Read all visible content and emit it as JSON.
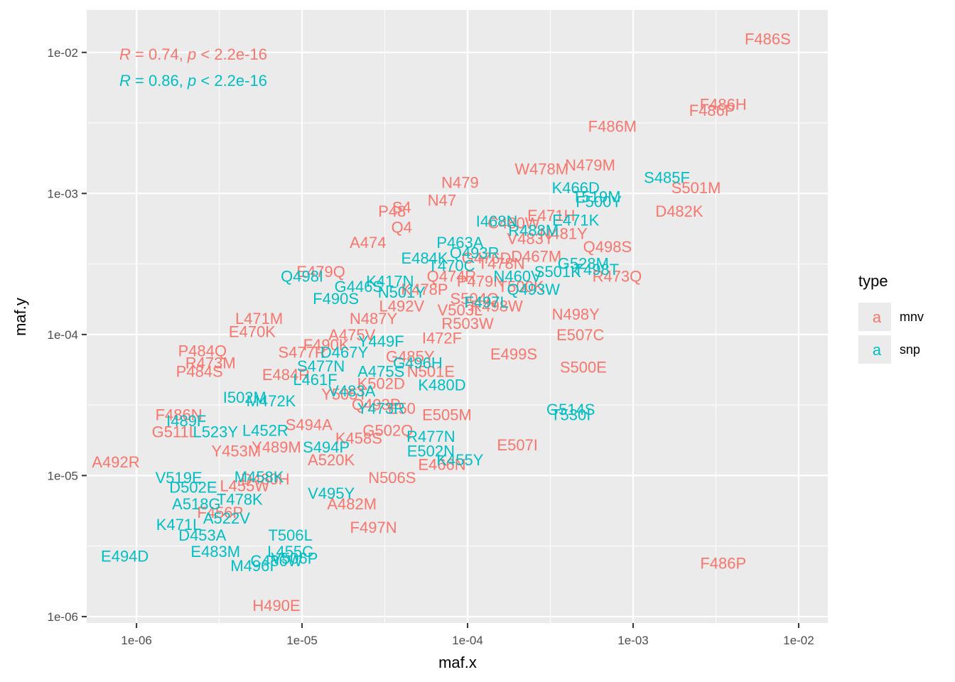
{
  "colors": {
    "mnv": "#F8766D",
    "snp": "#00BFC4",
    "panel_bg": "#EBEBEB",
    "grid_major": "#FFFFFF",
    "axis_text": "#4D4D4D",
    "title_text": "#000000"
  },
  "chart_data": {
    "type": "scatter",
    "marker": "text-label",
    "xscale": "log10",
    "yscale": "log10",
    "xlabel": "maf.x",
    "ylabel": "maf.y",
    "xlim": [
      5e-07,
      0.015
    ],
    "ylim": [
      9e-07,
      0.02
    ],
    "xticks": [
      1e-06,
      1e-05,
      0.0001,
      0.001,
      0.01
    ],
    "xtick_labels": [
      "1e-06",
      "1e-05",
      "1e-04",
      "1e-03",
      "1e-02"
    ],
    "yticks": [
      1e-06,
      1e-05,
      0.0001,
      0.001,
      0.01
    ],
    "ytick_labels": [
      "1e-06",
      "1e-05",
      "1e-04",
      "1e-03",
      "1e-02"
    ],
    "grid": true,
    "legend": {
      "title": "type",
      "position": "right",
      "key_glyph": "a",
      "entries": [
        {
          "name": "mnv",
          "label": "mnv"
        },
        {
          "name": "snp",
          "label": "snp"
        }
      ]
    },
    "annotations": [
      {
        "series": "mnv",
        "r_symbol": "R",
        "r_text": " = 0.74, ",
        "p_symbol": "p",
        "p_text": " < 2.2e-16"
      },
      {
        "series": "snp",
        "r_symbol": "R",
        "r_text": " = 0.86, ",
        "p_symbol": "p",
        "p_text": " < 2.2e-16"
      }
    ],
    "series": [
      {
        "name": "mnv",
        "points": [
          {
            "label": "F486S",
            "x": 0.0065,
            "y": 0.0125
          },
          {
            "label": "F486H",
            "x": 0.0035,
            "y": 0.0043
          },
          {
            "label": "F486P",
            "x": 0.003,
            "y": 0.0039
          },
          {
            "label": "F486M",
            "x": 0.00075,
            "y": 0.003
          },
          {
            "label": "N479M",
            "x": 0.00055,
            "y": 0.0016
          },
          {
            "label": "W478M",
            "x": 0.00028,
            "y": 0.0015
          },
          {
            "label": "S501M",
            "x": 0.0024,
            "y": 0.0011
          },
          {
            "label": "D482K",
            "x": 0.0019,
            "y": 0.00075
          },
          {
            "label": "N479",
            "x": 9e-05,
            "y": 0.0012
          },
          {
            "label": "N47",
            "x": 7e-05,
            "y": 0.0009
          },
          {
            "label": "P48",
            "x": 3.5e-05,
            "y": 0.00075
          },
          {
            "label": "S4",
            "x": 4e-05,
            "y": 0.0008
          },
          {
            "label": "Q4",
            "x": 4e-05,
            "y": 0.00058
          },
          {
            "label": "A474",
            "x": 2.5e-05,
            "y": 0.00045
          },
          {
            "label": "E479Q",
            "x": 1.3e-05,
            "y": 0.00028
          },
          {
            "label": "Q498S",
            "x": 0.0007,
            "y": 0.00042
          },
          {
            "label": "R473Q",
            "x": 0.0008,
            "y": 0.00026
          },
          {
            "label": "N498Y",
            "x": 0.00045,
            "y": 0.00014
          },
          {
            "label": "E507C",
            "x": 0.00048,
            "y": 0.0001
          },
          {
            "label": "E499S",
            "x": 0.00019,
            "y": 7.3e-05
          },
          {
            "label": "S500E",
            "x": 0.0005,
            "y": 5.9e-05
          },
          {
            "label": "P484Q",
            "x": 2.5e-06,
            "y": 7.7e-05
          },
          {
            "label": "R473M",
            "x": 2.8e-06,
            "y": 6.3e-05
          },
          {
            "label": "P484S",
            "x": 2.4e-06,
            "y": 5.5e-05
          },
          {
            "label": "E470K",
            "x": 5e-06,
            "y": 0.000105
          },
          {
            "label": "L471M",
            "x": 5.5e-06,
            "y": 0.00013
          },
          {
            "label": "E505M",
            "x": 7.5e-05,
            "y": 2.7e-05
          },
          {
            "label": "F486N",
            "x": 1.8e-06,
            "y": 2.7e-05
          },
          {
            "label": "G511L",
            "x": 1.7e-06,
            "y": 2.05e-05
          },
          {
            "label": "A492R",
            "x": 7.5e-07,
            "y": 1.25e-05
          },
          {
            "label": "E507I",
            "x": 0.0002,
            "y": 1.65e-05
          },
          {
            "label": "E466N",
            "x": 7e-05,
            "y": 1.2e-05
          },
          {
            "label": "N506S",
            "x": 3.5e-05,
            "y": 9.7e-06
          },
          {
            "label": "A482M",
            "x": 2e-05,
            "y": 6.3e-06
          },
          {
            "label": "F497N",
            "x": 2.7e-05,
            "y": 4.3e-06
          },
          {
            "label": "F486P",
            "x": 0.0035,
            "y": 2.4e-06
          },
          {
            "label": "H490E",
            "x": 7e-06,
            "y": 1.2e-06
          },
          {
            "label": "Y489M",
            "x": 7e-06,
            "y": 1.6e-05
          },
          {
            "label": "D480H",
            "x": 6e-06,
            "y": 9.5e-06
          },
          {
            "label": "E50",
            "x": 4e-05,
            "y": 3e-05
          },
          {
            "label": "N501E",
            "x": 6e-05,
            "y": 5.5e-05
          },
          {
            "label": "K502D",
            "x": 3e-05,
            "y": 4.5e-05
          },
          {
            "label": "R503W",
            "x": 0.0001,
            "y": 0.00012
          },
          {
            "label": "S504Q",
            "x": 0.00011,
            "y": 0.00018
          },
          {
            "label": "T478N",
            "x": 0.00016,
            "y": 0.00032
          },
          {
            "label": "V483Y",
            "x": 0.00024,
            "y": 0.00048
          },
          {
            "label": "C480W",
            "x": 0.00019,
            "y": 0.00062
          },
          {
            "label": "G476D",
            "x": 0.00013,
            "y": 0.00035
          },
          {
            "label": "Q474R",
            "x": 8e-05,
            "y": 0.00026
          },
          {
            "label": "K478P",
            "x": 5.5e-05,
            "y": 0.00021
          },
          {
            "label": "L492V",
            "x": 4e-05,
            "y": 0.00016
          },
          {
            "label": "N487Y",
            "x": 2.7e-05,
            "y": 0.00013
          },
          {
            "label": "A475V",
            "x": 2e-05,
            "y": 0.0001
          },
          {
            "label": "F490K",
            "x": 1.4e-05,
            "y": 8.5e-05
          },
          {
            "label": "S477R",
            "x": 1e-05,
            "y": 7.5e-05
          },
          {
            "label": "E484R",
            "x": 8e-06,
            "y": 5.2e-05
          },
          {
            "label": "Y505T",
            "x": 1.8e-05,
            "y": 3.8e-05
          },
          {
            "label": "Q493P",
            "x": 2.8e-05,
            "y": 3.2e-05
          },
          {
            "label": "G485Y",
            "x": 4.5e-05,
            "y": 7e-05
          },
          {
            "label": "I472F",
            "x": 7e-05,
            "y": 9.5e-05
          },
          {
            "label": "V503L",
            "x": 9e-05,
            "y": 0.00015
          },
          {
            "label": "P479N",
            "x": 0.00012,
            "y": 0.00024
          },
          {
            "label": "R498W",
            "x": 0.00015,
            "y": 0.00016
          },
          {
            "label": "T500K",
            "x": 0.00021,
            "y": 0.00022
          },
          {
            "label": "D467M",
            "x": 0.00026,
            "y": 0.00036
          },
          {
            "label": "E471H",
            "x": 0.00032,
            "y": 0.0007
          },
          {
            "label": "N481Y",
            "x": 0.00038,
            "y": 0.00052
          },
          {
            "label": "S494A",
            "x": 1.1e-05,
            "y": 2.3e-05
          },
          {
            "label": "Y453M",
            "x": 4e-06,
            "y": 1.5e-05
          },
          {
            "label": "L455W",
            "x": 4.5e-06,
            "y": 8.5e-06
          },
          {
            "label": "F456P",
            "x": 3.2e-06,
            "y": 5.5e-06
          },
          {
            "label": "A520K",
            "x": 1.5e-05,
            "y": 1.3e-05
          },
          {
            "label": "K458S",
            "x": 2.2e-05,
            "y": 1.85e-05
          },
          {
            "label": "G502Q",
            "x": 3.3e-05,
            "y": 2.1e-05
          }
        ]
      },
      {
        "name": "snp",
        "points": [
          {
            "label": "S485F",
            "x": 0.0016,
            "y": 0.0013
          },
          {
            "label": "T519M",
            "x": 0.0006,
            "y": 0.00095
          },
          {
            "label": "K466D",
            "x": 0.00045,
            "y": 0.0011
          },
          {
            "label": "F500Y",
            "x": 0.00062,
            "y": 0.00088
          },
          {
            "label": "G528M",
            "x": 0.0005,
            "y": 0.00032
          },
          {
            "label": "G514S",
            "x": 0.00042,
            "y": 2.95e-05
          },
          {
            "label": "T530I",
            "x": 0.00042,
            "y": 2.7e-05
          },
          {
            "label": "S501K",
            "x": 0.00035,
            "y": 0.00028
          },
          {
            "label": "T498T",
            "x": 0.0006,
            "y": 0.00029
          },
          {
            "label": "Q498I",
            "x": 1e-05,
            "y": 0.00026
          },
          {
            "label": "I502M",
            "x": 4.5e-06,
            "y": 3.6e-05
          },
          {
            "label": "M472K",
            "x": 6.5e-06,
            "y": 3.4e-05
          },
          {
            "label": "I489F",
            "x": 2e-06,
            "y": 2.45e-05
          },
          {
            "label": "L523Y",
            "x": 3e-06,
            "y": 2.05e-05
          },
          {
            "label": "V519E",
            "x": 1.8e-06,
            "y": 9.7e-06
          },
          {
            "label": "D502E",
            "x": 2.2e-06,
            "y": 8.3e-06
          },
          {
            "label": "A518G",
            "x": 2.3e-06,
            "y": 6.3e-06
          },
          {
            "label": "K471L",
            "x": 1.8e-06,
            "y": 4.5e-06
          },
          {
            "label": "D453A",
            "x": 2.5e-06,
            "y": 3.8e-06
          },
          {
            "label": "E494D",
            "x": 8.5e-07,
            "y": 2.7e-06
          },
          {
            "label": "E483M",
            "x": 3e-06,
            "y": 2.9e-06
          },
          {
            "label": "C486W",
            "x": 7e-06,
            "y": 2.5e-06
          },
          {
            "label": "M496I",
            "x": 5e-06,
            "y": 2.3e-06
          },
          {
            "label": "L455C",
            "x": 8.5e-06,
            "y": 2.9e-06
          },
          {
            "label": "V506P",
            "x": 9e-06,
            "y": 2.6e-06
          },
          {
            "label": "M458K",
            "x": 5.5e-06,
            "y": 9.8e-06
          },
          {
            "label": "T506L",
            "x": 8.5e-06,
            "y": 3.8e-06
          },
          {
            "label": "K455Y",
            "x": 9e-05,
            "y": 1.3e-05
          },
          {
            "label": "E502N",
            "x": 6e-05,
            "y": 1.5e-05
          },
          {
            "label": "R477N",
            "x": 6e-05,
            "y": 1.9e-05
          },
          {
            "label": "V495Y",
            "x": 1.5e-05,
            "y": 7.5e-06
          },
          {
            "label": "Y473R",
            "x": 3e-05,
            "y": 3e-05
          },
          {
            "label": "G496H",
            "x": 5e-05,
            "y": 6.3e-05
          },
          {
            "label": "K480D",
            "x": 7e-05,
            "y": 4.4e-05
          },
          {
            "label": "Q493W",
            "x": 0.00025,
            "y": 0.00021
          },
          {
            "label": "N460V",
            "x": 0.0002,
            "y": 0.00026
          },
          {
            "label": "R488M",
            "x": 0.00025,
            "y": 0.00055
          },
          {
            "label": "E471K",
            "x": 0.00045,
            "y": 0.00065
          },
          {
            "label": "F497L",
            "x": 0.00013,
            "y": 0.00017
          },
          {
            "label": "I468N",
            "x": 0.00015,
            "y": 0.00064
          },
          {
            "label": "P463A",
            "x": 9e-05,
            "y": 0.00045
          },
          {
            "label": "T470C",
            "x": 8e-05,
            "y": 0.00031
          },
          {
            "label": "A475S",
            "x": 3e-05,
            "y": 5.5e-05
          },
          {
            "label": "Y449F",
            "x": 3e-05,
            "y": 9e-05
          },
          {
            "label": "D467Y",
            "x": 1.8e-05,
            "y": 7.5e-05
          },
          {
            "label": "S477N",
            "x": 1.3e-05,
            "y": 6e-05
          },
          {
            "label": "V483A",
            "x": 2e-05,
            "y": 4e-05
          },
          {
            "label": "L461F",
            "x": 1.2e-05,
            "y": 4.8e-05
          },
          {
            "label": "N501Y",
            "x": 4e-05,
            "y": 0.0002
          },
          {
            "label": "E484K",
            "x": 5.5e-05,
            "y": 0.00035
          },
          {
            "label": "K417N",
            "x": 3.4e-05,
            "y": 0.00024
          },
          {
            "label": "G446S",
            "x": 2.2e-05,
            "y": 0.00022
          },
          {
            "label": "F490S",
            "x": 1.6e-05,
            "y": 0.00018
          },
          {
            "label": "Q493R",
            "x": 0.00011,
            "y": 0.00038
          },
          {
            "label": "S494P",
            "x": 1.4e-05,
            "y": 1.6e-05
          },
          {
            "label": "L452R",
            "x": 6e-06,
            "y": 2.1e-05
          },
          {
            "label": "T478K",
            "x": 4.2e-06,
            "y": 6.8e-06
          },
          {
            "label": "A522V",
            "x": 3.5e-06,
            "y": 5e-06
          }
        ]
      }
    ]
  }
}
